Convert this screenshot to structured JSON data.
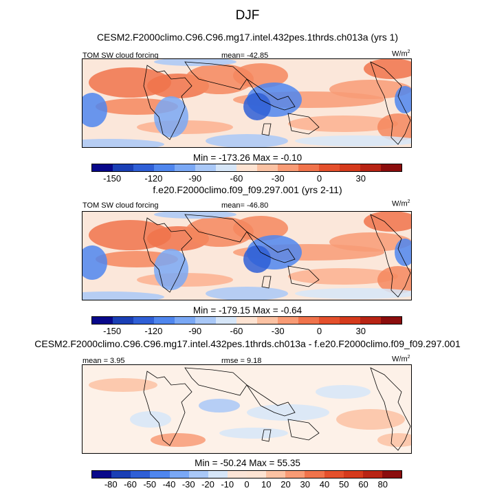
{
  "season": "DJF",
  "panels": [
    {
      "title": "CESM2.F2000climo.C96.C96.mg17.intel.432pes.1thrds.ch013a (yrs 1)",
      "variable": "TOM SW cloud forcing",
      "stat": "mean= -42.85",
      "units": "W/m",
      "units_exp": "2",
      "minmax": "Min = -173.26 Max =  -0.10",
      "cbar_ticks": [
        "-150",
        "-120",
        "-90",
        "-60",
        "-30",
        "0",
        "30"
      ],
      "palette": [
        "#08088a",
        "#1a3fb5",
        "#2f5fd6",
        "#4f86ee",
        "#7aa8f5",
        "#a9c8f7",
        "#d6e6f8",
        "#fde3d2",
        "#fbc2a3",
        "#f89b75",
        "#f0734b",
        "#e4502c",
        "#d53a1c",
        "#b82414",
        "#8b0d0d"
      ],
      "field": "mean"
    },
    {
      "title": "f.e20.F2000climo.f09_f09.297.001 (yrs 2-11)",
      "variable": "TOM SW cloud forcing",
      "stat": "mean= -46.80",
      "units": "W/m",
      "units_exp": "2",
      "minmax": "Min = -179.15 Max =  -0.64",
      "cbar_ticks": [
        "-150",
        "-120",
        "-90",
        "-60",
        "-30",
        "0",
        "30"
      ],
      "palette": [
        "#08088a",
        "#1a3fb5",
        "#2f5fd6",
        "#4f86ee",
        "#7aa8f5",
        "#a9c8f7",
        "#d6e6f8",
        "#fde3d2",
        "#fbc2a3",
        "#f89b75",
        "#f0734b",
        "#e4502c",
        "#d53a1c",
        "#b82414",
        "#8b0d0d"
      ],
      "field": "mean"
    },
    {
      "title": "CESM2.F2000climo.C96.C96.mg17.intel.432pes.1thrds.ch013a - f.e20.F2000climo.f09_f09.297.001",
      "variable": "mean =   3.95",
      "stat": "rmse =  9.18",
      "units": "W/m",
      "units_exp": "2",
      "minmax": "Min = -50.24 Max =  55.35",
      "cbar_ticks": [
        "-80",
        "-60",
        "-50",
        "-40",
        "-30",
        "-20",
        "-10",
        "0",
        "10",
        "20",
        "30",
        "40",
        "50",
        "60",
        "80"
      ],
      "palette": [
        "#08088a",
        "#1a3fb5",
        "#2f5fd6",
        "#4f86ee",
        "#7aa8f5",
        "#a9c8f7",
        "#d6e6f8",
        "#fbe4d6",
        "#fde3d2",
        "#fbc2a3",
        "#f89b75",
        "#f0734b",
        "#e4502c",
        "#d53a1c",
        "#b82414",
        "#8b0d0d"
      ],
      "field": "diff"
    }
  ]
}
